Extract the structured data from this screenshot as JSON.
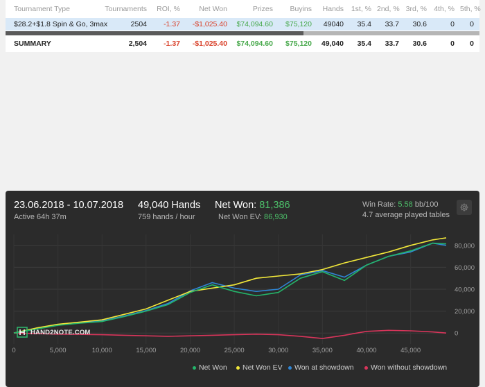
{
  "table": {
    "headers": [
      "Tournament Type",
      "Tournaments",
      "ROI, %",
      "Net Won",
      "Prizes",
      "Buyins",
      "Hands",
      "1st, %",
      "2nd, %",
      "3rd, %",
      "4th, %",
      "5th, %"
    ],
    "rows": [
      {
        "type": "$28.2+$1.8 Spin & Go, 3max",
        "tournaments": "2504",
        "roi": "-1.37",
        "net_won": "-$1,025.40",
        "prizes": "$74,094.60",
        "buyins": "$75,120",
        "hands": "49040",
        "p1": "35.4",
        "p2": "33.7",
        "p3": "30.6",
        "p4": "0",
        "p5": "0"
      }
    ],
    "summary": {
      "type": "SUMMARY",
      "tournaments": "2,504",
      "roi": "-1.37",
      "net_won": "-$1,025.40",
      "prizes": "$74,094.60",
      "buyins": "$75,120",
      "hands": "49,040",
      "p1": "35.4",
      "p2": "33.7",
      "p3": "30.6",
      "p4": "0",
      "p5": "0"
    }
  },
  "graph_header": {
    "date_range": "23.06.2018 - 10.07.2018",
    "active": "Active 64h 37m",
    "hands": "49,040 Hands",
    "hands_per_hour": "759 hands / hour",
    "net_won_label": "Net Won:",
    "net_won_value": "81,386",
    "net_won_ev_label": "Net Won  EV:",
    "net_won_ev_value": "86,930",
    "win_rate_label": "Win Rate:",
    "win_rate_value": "5.58",
    "win_rate_unit": "bb/100",
    "avg_tables": "4.7 average played tables"
  },
  "logo_text": "HAND2NOTE.COM",
  "colors": {
    "net_won": "#24b56b",
    "net_won_ev": "#f2e83a",
    "won_showdown": "#2f86d6",
    "won_without_showdown": "#d9355b",
    "positive": "#46a84a",
    "negative": "#d9412a"
  },
  "chart_data": {
    "type": "line",
    "xlim": [
      0,
      49040
    ],
    "ylim": [
      -10000,
      90000
    ],
    "x_ticks": [
      0,
      5000,
      10000,
      15000,
      20000,
      25000,
      30000,
      35000,
      40000,
      45000
    ],
    "x_tick_labels": [
      "0",
      "5,000",
      "10,000",
      "15,000",
      "20,000",
      "25,000",
      "30,000",
      "35,000",
      "40,000",
      "45,000"
    ],
    "y_ticks": [
      0,
      20000,
      40000,
      60000,
      80000
    ],
    "y_tick_labels": [
      "0",
      "20,000",
      "40,000",
      "60,000",
      "80,000"
    ],
    "legend_position": "bottom-right",
    "series": [
      {
        "name": "Net Won",
        "color": "#24b56b",
        "x": [
          0,
          2500,
          5000,
          7500,
          10000,
          12500,
          15000,
          17500,
          20000,
          22500,
          25000,
          27500,
          30000,
          32500,
          35000,
          37500,
          40000,
          42500,
          45000,
          47500,
          49040
        ],
        "y": [
          0,
          3500,
          7000,
          9000,
          10500,
          15000,
          20000,
          26000,
          37000,
          44000,
          38000,
          34000,
          37000,
          50000,
          56000,
          48000,
          62000,
          70000,
          75000,
          82000,
          81386
        ]
      },
      {
        "name": "Net Won  EV",
        "color": "#f2e83a",
        "x": [
          0,
          2500,
          5000,
          7500,
          10000,
          12500,
          15000,
          17500,
          20000,
          22500,
          25000,
          27500,
          30000,
          32500,
          35000,
          37500,
          40000,
          42500,
          45000,
          47500,
          49040
        ],
        "y": [
          0,
          4500,
          8000,
          10000,
          12000,
          17000,
          22000,
          30000,
          38000,
          41000,
          44000,
          50000,
          52000,
          54000,
          58000,
          64000,
          69000,
          74000,
          80000,
          85000,
          86930
        ]
      },
      {
        "name": "Won at showdown",
        "color": "#2f86d6",
        "x": [
          0,
          2500,
          5000,
          7500,
          10000,
          12500,
          15000,
          17500,
          20000,
          22500,
          25000,
          27500,
          30000,
          32500,
          35000,
          37500,
          40000,
          42500,
          45000,
          47500,
          49040
        ],
        "y": [
          0,
          3800,
          7500,
          9500,
          11000,
          15500,
          20500,
          27000,
          38500,
          46000,
          41000,
          38000,
          40000,
          53000,
          57000,
          51000,
          62000,
          70000,
          74000,
          82000,
          80000
        ]
      },
      {
        "name": "Won without showdown",
        "color": "#d9355b",
        "x": [
          0,
          2500,
          5000,
          7500,
          10000,
          12500,
          15000,
          17500,
          20000,
          22500,
          25000,
          27500,
          30000,
          32500,
          35000,
          37500,
          40000,
          42500,
          45000,
          47500,
          49040
        ],
        "y": [
          0,
          -500,
          -1000,
          -1200,
          -1500,
          -2000,
          -2500,
          -3000,
          -2500,
          -2000,
          -1500,
          -1000,
          -1500,
          -3000,
          -5000,
          -2000,
          1500,
          2500,
          2000,
          1000,
          0
        ]
      }
    ]
  }
}
